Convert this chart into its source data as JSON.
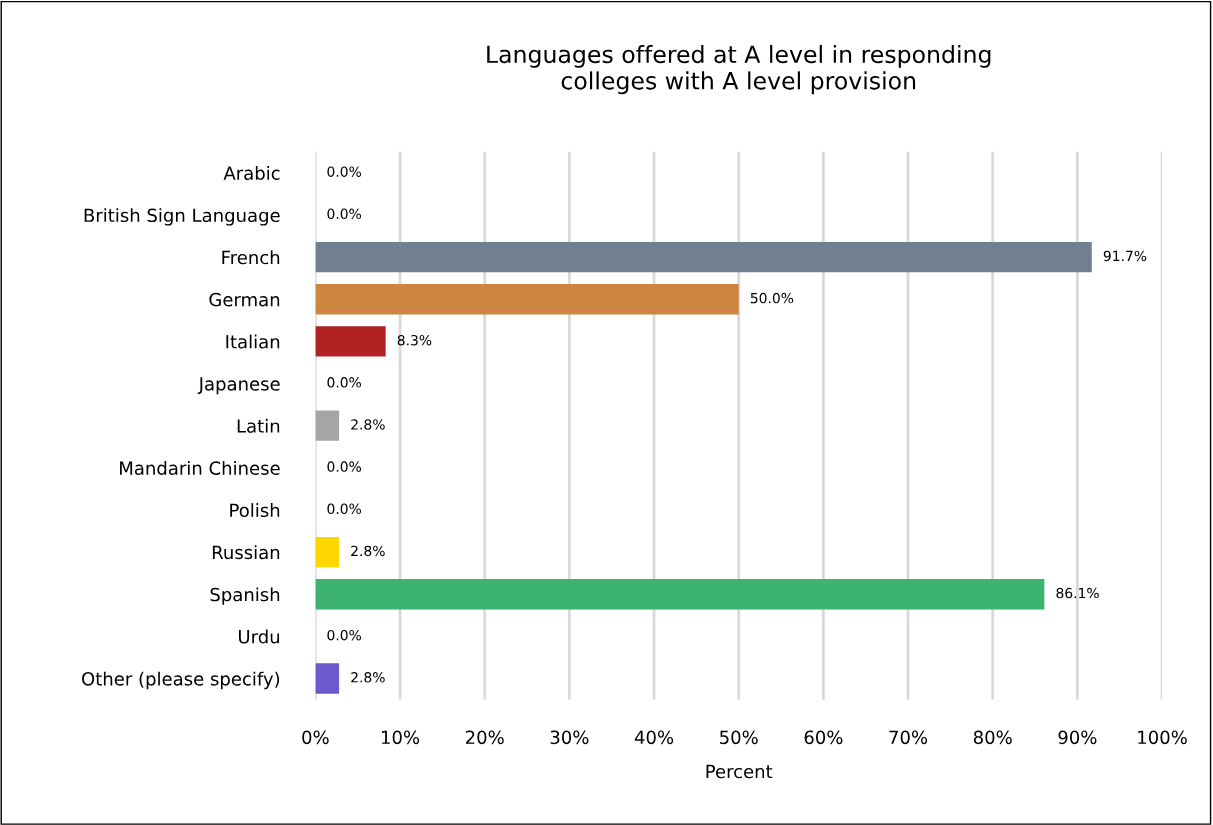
{
  "chart_data": {
    "type": "bar",
    "orientation": "horizontal",
    "title": "Languages offered at A level in responding\ncolleges with A level provision",
    "xlabel": "Percent",
    "categories": [
      "Arabic",
      "British Sign Language",
      "French",
      "German",
      "Italian",
      "Japanese",
      "Latin",
      "Mandarin Chinese",
      "Polish",
      "Russian",
      "Spanish",
      "Urdu",
      "Other (please specify)"
    ],
    "values": [
      0.0,
      0.0,
      91.7,
      50.0,
      8.3,
      0.0,
      2.8,
      0.0,
      0.0,
      2.8,
      86.1,
      0.0,
      2.8
    ],
    "value_labels": [
      "0.0%",
      "0.0%",
      "91.7%",
      "50.0%",
      "8.3%",
      "0.0%",
      "2.8%",
      "0.0%",
      "0.0%",
      "2.8%",
      "86.1%",
      "0.0%",
      "2.8%"
    ],
    "colors": [
      "#4472c4",
      "#ed7d31",
      "#708090",
      "#cd853f",
      "#b22222",
      "#4472c4",
      "#a5a5a5",
      "#4472c4",
      "#4472c4",
      "#ffd700",
      "#3cb371",
      "#4472c4",
      "#6a5acd"
    ],
    "xlim": [
      0,
      100
    ],
    "xticks": [
      {
        "value": 0,
        "label": "0%"
      },
      {
        "value": 10,
        "label": "10%"
      },
      {
        "value": 20,
        "label": "20%"
      },
      {
        "value": 30,
        "label": "30%"
      },
      {
        "value": 40,
        "label": "40%"
      },
      {
        "value": 50,
        "label": "50%"
      },
      {
        "value": 60,
        "label": "60%"
      },
      {
        "value": 70,
        "label": "70%"
      },
      {
        "value": 80,
        "label": "80%"
      },
      {
        "value": 90,
        "label": "90%"
      },
      {
        "value": 100,
        "label": "100%"
      }
    ],
    "grid": "x",
    "legend": false
  }
}
